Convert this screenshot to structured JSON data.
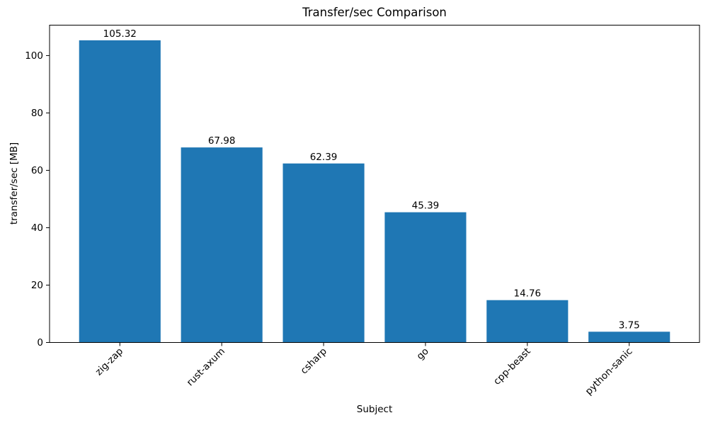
{
  "figure": {
    "background": "#ffffff"
  },
  "chart_data": {
    "type": "bar",
    "title": "Transfer/sec Comparison",
    "xlabel": "Subject",
    "ylabel": "transfer/sec [MB]",
    "categories": [
      "zig-zap",
      "rust-axum",
      "csharp",
      "go",
      "cpp-beast",
      "python-sanic"
    ],
    "values": [
      105.32,
      67.98,
      62.39,
      45.39,
      14.76,
      3.75
    ],
    "bar_labels": [
      "105.32",
      "67.98",
      "62.39",
      "45.39",
      "14.76",
      "3.75"
    ],
    "yticks": [
      0,
      20,
      40,
      60,
      80,
      100
    ],
    "ylim": [
      0,
      110.6
    ],
    "xlim": [
      -0.69,
      5.69
    ],
    "bar_width_units": 0.8,
    "x_tick_rotation_deg": 45,
    "grid": false,
    "legend_position": "none",
    "bar_color": "#1f77b4",
    "axis_color": "#000000",
    "text_color": "#000000"
  }
}
